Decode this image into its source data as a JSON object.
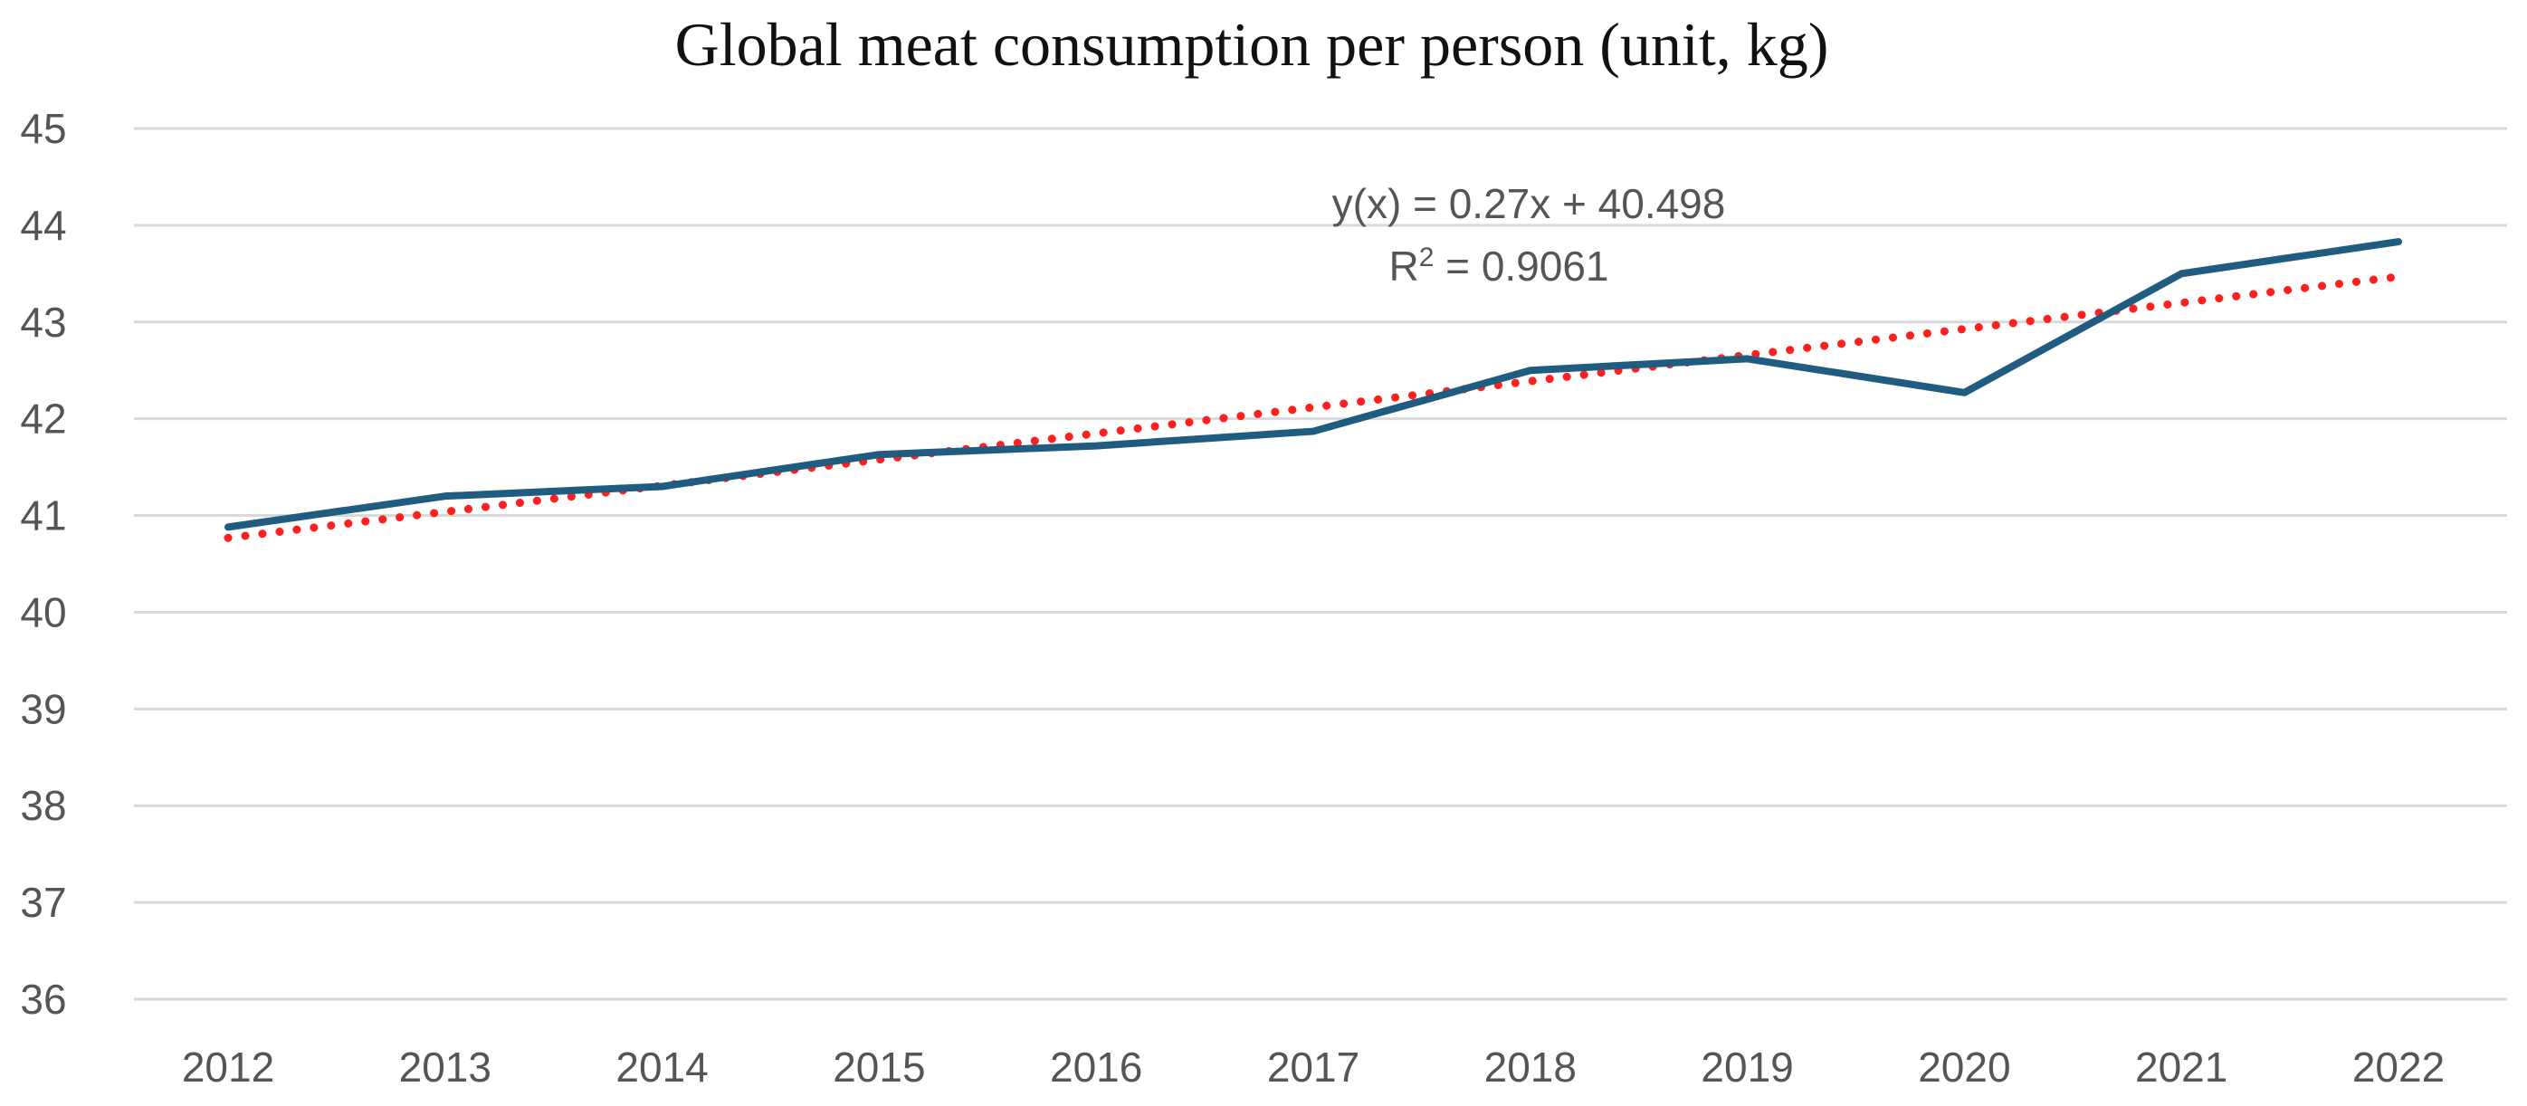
{
  "chart_data": {
    "type": "line",
    "title": "Global meat consumption per person (unit, kg)",
    "xlabel": "",
    "ylabel": "",
    "categories": [
      "2012",
      "2013",
      "2014",
      "2015",
      "2016",
      "2017",
      "2018",
      "2019",
      "2020",
      "2021",
      "2022"
    ],
    "ylim": [
      36,
      45
    ],
    "yticks": [
      "36",
      "37",
      "38",
      "39",
      "40",
      "41",
      "42",
      "43",
      "44",
      "45"
    ],
    "grid": true,
    "series": [
      {
        "name": "Global meat consumption per person",
        "values": [
          40.88,
          41.2,
          41.3,
          41.63,
          41.72,
          41.87,
          42.5,
          42.62,
          42.27,
          43.5,
          43.83
        ],
        "color": "#1f5c80"
      }
    ],
    "trendline": {
      "type": "linear",
      "slope": 0.27,
      "intercept": 40.498,
      "color": "#ff1f1f",
      "equation_label": "y(x) = 0.27x + 40.498",
      "r_squared_label_prefix": "R",
      "r_squared_superscript": "2",
      "r_squared_label_value": " = 0.9061"
    }
  }
}
